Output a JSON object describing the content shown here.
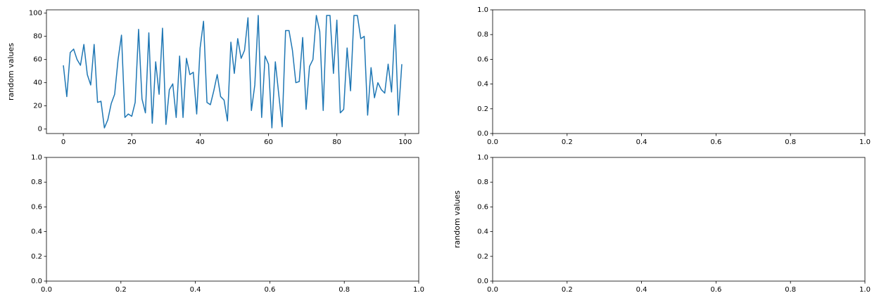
{
  "chart_data": [
    {
      "type": "line",
      "ylabel": "random values",
      "x": [
        0,
        1,
        2,
        3,
        4,
        5,
        6,
        7,
        8,
        9,
        10,
        11,
        12,
        13,
        14,
        15,
        16,
        17,
        18,
        19,
        20,
        21,
        22,
        23,
        24,
        25,
        26,
        27,
        28,
        29,
        30,
        31,
        32,
        33,
        34,
        35,
        36,
        37,
        38,
        39,
        40,
        41,
        42,
        43,
        44,
        45,
        46,
        47,
        48,
        49,
        50,
        51,
        52,
        53,
        54,
        55,
        56,
        57,
        58,
        59,
        60,
        61,
        62,
        63,
        64,
        65,
        66,
        67,
        68,
        69,
        70,
        71,
        72,
        73,
        74,
        75,
        76,
        77,
        78,
        79,
        80,
        81,
        82,
        83,
        84,
        85,
        86,
        87,
        88,
        89,
        90,
        91,
        92,
        93,
        94,
        95,
        96,
        97,
        98,
        99
      ],
      "series": [
        {
          "color": "#1f77b4",
          "values": [
            55,
            28,
            66,
            69,
            60,
            55,
            73,
            47,
            38,
            73,
            23,
            24,
            1,
            8,
            22,
            30,
            60,
            81,
            10,
            13,
            11,
            23,
            86,
            26,
            14,
            83,
            5,
            58,
            30,
            87,
            4,
            34,
            39,
            10,
            63,
            10,
            61,
            47,
            49,
            13,
            70,
            93,
            23,
            21,
            33,
            47,
            28,
            25,
            7,
            75,
            48,
            78,
            61,
            68,
            96,
            16,
            38,
            98,
            10,
            63,
            56,
            1,
            58,
            30,
            2,
            85,
            85,
            68,
            40,
            41,
            79,
            17,
            54,
            60,
            98,
            84,
            16,
            98,
            98,
            48,
            94,
            14,
            17,
            70,
            33,
            98,
            98,
            78,
            80,
            12,
            53,
            27,
            40,
            34,
            31,
            56,
            32,
            90,
            12,
            56
          ]
        }
      ],
      "xlim": [
        -4.95,
        103.95
      ],
      "ylim": [
        -3.85,
        102.85
      ],
      "xticks": [
        0,
        20,
        40,
        60,
        80,
        100
      ],
      "yticks": [
        0,
        20,
        40,
        60,
        80,
        100
      ]
    },
    {
      "type": "line",
      "xlim": [
        0,
        1
      ],
      "ylim": [
        0,
        1
      ],
      "xticks": [
        {
          "value": 0,
          "label": "0.0"
        },
        {
          "value": 0.2,
          "label": "0.2"
        },
        {
          "value": 0.4,
          "label": "0.4"
        },
        {
          "value": 0.6,
          "label": "0.6"
        },
        {
          "value": 0.8,
          "label": "0.8"
        },
        {
          "value": 1,
          "label": "1.0"
        }
      ],
      "yticks": [
        {
          "value": 0,
          "label": "0.0"
        },
        {
          "value": 0.2,
          "label": "0.2"
        },
        {
          "value": 0.4,
          "label": "0.4"
        },
        {
          "value": 0.6,
          "label": "0.6"
        },
        {
          "value": 0.8,
          "label": "0.8"
        },
        {
          "value": 1,
          "label": "1.0"
        }
      ]
    },
    {
      "type": "line",
      "xlim": [
        0,
        1
      ],
      "ylim": [
        0,
        1
      ],
      "xticks": [
        {
          "value": 0,
          "label": "0.0"
        },
        {
          "value": 0.2,
          "label": "0.2"
        },
        {
          "value": 0.4,
          "label": "0.4"
        },
        {
          "value": 0.6,
          "label": "0.6"
        },
        {
          "value": 0.8,
          "label": "0.8"
        },
        {
          "value": 1,
          "label": "1.0"
        }
      ],
      "yticks": [
        {
          "value": 0,
          "label": "0.0"
        },
        {
          "value": 0.2,
          "label": "0.2"
        },
        {
          "value": 0.4,
          "label": "0.4"
        },
        {
          "value": 0.6,
          "label": "0.6"
        },
        {
          "value": 0.8,
          "label": "0.8"
        },
        {
          "value": 1,
          "label": "1.0"
        }
      ]
    },
    {
      "type": "line",
      "ylabel": "random values",
      "xlim": [
        0,
        1
      ],
      "ylim": [
        0,
        1
      ],
      "xticks": [
        {
          "value": 0,
          "label": "0.0"
        },
        {
          "value": 0.2,
          "label": "0.2"
        },
        {
          "value": 0.4,
          "label": "0.4"
        },
        {
          "value": 0.6,
          "label": "0.6"
        },
        {
          "value": 0.8,
          "label": "0.8"
        },
        {
          "value": 1,
          "label": "1.0"
        }
      ],
      "yticks": [
        {
          "value": 0,
          "label": "0.0"
        },
        {
          "value": 0.2,
          "label": "0.2"
        },
        {
          "value": 0.4,
          "label": "0.4"
        },
        {
          "value": 0.6,
          "label": "0.6"
        },
        {
          "value": 0.8,
          "label": "0.8"
        },
        {
          "value": 1,
          "label": "1.0"
        }
      ]
    }
  ]
}
